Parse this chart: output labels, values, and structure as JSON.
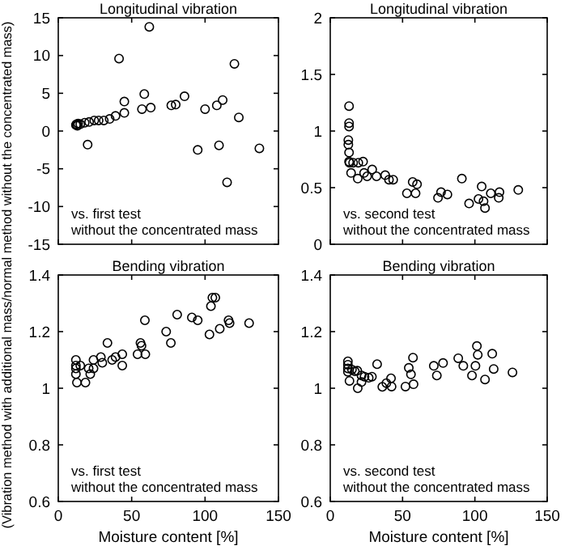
{
  "chart_data": [
    {
      "type": "scatter",
      "title": "Longitudinal vibration",
      "ylabel": "(Vibration method with additional mass/normal method without the concentrated mass)",
      "annotations": [
        "vs. first test\nwithout the concentrated mass"
      ],
      "marker": "circle",
      "tick_labels": "y",
      "xlim": [
        0,
        150
      ],
      "xticks": [
        0,
        50,
        100,
        150
      ],
      "ylim": [
        -15,
        15
      ],
      "yticks": [
        -15,
        -10,
        -5,
        0,
        5,
        10,
        15
      ],
      "series": [
        {
          "color": "#000000",
          "x": [
            12,
            12.5,
            13,
            13.5,
            15,
            18,
            21,
            24.5,
            27.5,
            31,
            35,
            39,
            45,
            45,
            41.4,
            20,
            57,
            58.6,
            63,
            62,
            77,
            80,
            86,
            95,
            100,
            108,
            112,
            109.5,
            115,
            120,
            123,
            137
          ],
          "values": [
            0.8,
            0.9,
            0.7,
            1.0,
            0.9,
            1.1,
            1.2,
            1.4,
            1.4,
            1.4,
            1.6,
            2.0,
            2.4,
            3.9,
            9.6,
            -1.8,
            2.9,
            4.9,
            3.1,
            13.8,
            3.4,
            3.5,
            4.6,
            -2.5,
            2.9,
            3.4,
            4.1,
            -1.9,
            -6.8,
            8.9,
            1.8,
            -2.3
          ]
        }
      ]
    },
    {
      "type": "scatter",
      "title": "Longitudinal vibration",
      "annotations": [
        "vs. second test\nwithout the concentrated mass"
      ],
      "marker": "circle",
      "tick_labels": "y",
      "xlim": [
        0,
        150
      ],
      "xticks": [
        0,
        50,
        100,
        150
      ],
      "ylim": [
        0,
        2
      ],
      "yticks": [
        0,
        0.5,
        1,
        1.5,
        2
      ],
      "series": [
        {
          "color": "#000000",
          "x": [
            13,
            13,
            13,
            12.5,
            12.5,
            13,
            13,
            13.3,
            15.8,
            19.4,
            22.7,
            14.4,
            19,
            23.4,
            25.5,
            29,
            32,
            38,
            40.6,
            43.5,
            53,
            57,
            60,
            59,
            74.5,
            76.6,
            81,
            91,
            96,
            102.5,
            104.7,
            106,
            107,
            111,
            116.5,
            117,
            130
          ],
          "values": [
            1.22,
            1.07,
            1.04,
            0.92,
            0.88,
            0.81,
            0.73,
            0.72,
            0.72,
            0.72,
            0.73,
            0.63,
            0.58,
            0.63,
            0.6,
            0.66,
            0.6,
            0.61,
            0.57,
            0.57,
            0.45,
            0.55,
            0.53,
            0.45,
            0.41,
            0.46,
            0.44,
            0.58,
            0.36,
            0.4,
            0.51,
            0.38,
            0.32,
            0.45,
            0.41,
            0.46,
            0.48
          ]
        }
      ]
    },
    {
      "type": "scatter",
      "title": "Bending vibration",
      "xlabel": "Moisture content [%]",
      "annotations": [
        "vs. first test\nwithout the concentrated mass"
      ],
      "marker": "circle",
      "xlim": [
        0,
        150
      ],
      "xticks": [
        0,
        50,
        100,
        150
      ],
      "ylim": [
        0.6,
        1.4
      ],
      "yticks": [
        0.6,
        0.8,
        1,
        1.2,
        1.4
      ],
      "series": [
        {
          "color": "#000000",
          "x": [
            12,
            12,
            12,
            12,
            12.7,
            15,
            18.5,
            20.7,
            21.8,
            24,
            24,
            29,
            30,
            33.5,
            36.7,
            39,
            43.6,
            43.6,
            54,
            56,
            56.7,
            59,
            59.3,
            73.5,
            76.7,
            81,
            91,
            95,
            103,
            104,
            105,
            107,
            110,
            116,
            116.7,
            130
          ],
          "values": [
            1.1,
            1.08,
            1.07,
            1.05,
            1.02,
            1.08,
            1.02,
            1.07,
            1.05,
            1.07,
            1.1,
            1.11,
            1.09,
            1.16,
            1.1,
            1.11,
            1.12,
            1.08,
            1.12,
            1.16,
            1.15,
            1.24,
            1.12,
            1.2,
            1.16,
            1.26,
            1.25,
            1.24,
            1.19,
            1.29,
            1.32,
            1.32,
            1.21,
            1.24,
            1.23,
            1.23
          ]
        }
      ]
    },
    {
      "type": "scatter",
      "title": "Bending vibration",
      "xlabel": "Moisture content [%]",
      "annotations": [
        "vs. second test\nwithout the concentrated mass"
      ],
      "marker": "circle",
      "xlim": [
        0,
        150
      ],
      "xticks": [
        0,
        50,
        100,
        150
      ],
      "ylim": [
        0.6,
        1.4
      ],
      "yticks": [
        0.6,
        0.8,
        1,
        1.2,
        1.4
      ],
      "series": [
        {
          "color": "#000000",
          "x": [
            12.2,
            12.2,
            12.2,
            12.2,
            13.3,
            15,
            17,
            18.7,
            21.6,
            19,
            21.6,
            23.7,
            26.6,
            28.8,
            32.4,
            36,
            38.8,
            42,
            42.4,
            52,
            54.3,
            55.8,
            57.2,
            57.6,
            71.6,
            73.7,
            78,
            88.5,
            92,
            98,
            100.4,
            101.4,
            102,
            107,
            112,
            113,
            126
          ],
          "values": [
            1.095,
            1.083,
            1.07,
            1.058,
            1.026,
            1.066,
            1.06,
            1.062,
            1.045,
            1.0,
            1.022,
            1.041,
            1.037,
            1.041,
            1.085,
            1.005,
            1.018,
            1.035,
            1.006,
            1.006,
            1.072,
            1.049,
            1.108,
            1.014,
            1.079,
            1.045,
            1.089,
            1.106,
            1.079,
            1.045,
            1.079,
            1.149,
            1.118,
            1.031,
            1.122,
            1.068,
            1.056
          ]
        }
      ]
    }
  ]
}
